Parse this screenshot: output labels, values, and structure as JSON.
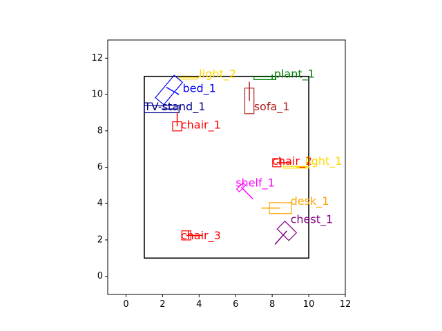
{
  "chart_data": {
    "type": "scatter",
    "xlim": [
      -1,
      12
    ],
    "ylim": [
      -1,
      13
    ],
    "x_ticks": [
      0,
      2,
      4,
      6,
      8,
      10,
      12
    ],
    "y_ticks": [
      0,
      2,
      4,
      6,
      8,
      10,
      12
    ],
    "grid": false,
    "room": {
      "x0": 1,
      "y0": 1,
      "x1": 10,
      "y1": 11,
      "color": "#000000"
    },
    "objects": [
      {
        "name": "light_2",
        "color": "#ffd700",
        "x": 3.4,
        "y": 10.9,
        "w": 1.0,
        "h": 0.1,
        "angle": 0,
        "label_x": 4.0,
        "label_y": 11.1
      },
      {
        "name": "plant_1",
        "color": "#008000",
        "x": 7.6,
        "y": 10.9,
        "w": 1.2,
        "h": 0.15,
        "angle": 0,
        "label_x": 8.1,
        "label_y": 11.1
      },
      {
        "name": "bed_1",
        "color": "#0000ff",
        "x": 2.35,
        "y": 10.25,
        "w": 1.6,
        "h": 0.6,
        "angle": -50,
        "label_x": 3.1,
        "label_y": 10.3
      },
      {
        "name": "TV-stand_1",
        "color": "#00008b",
        "x": 1.95,
        "y": 9.2,
        "w": 1.9,
        "h": 0.4,
        "angle": 0,
        "label_x": 1.0,
        "label_y": 9.3
      },
      {
        "name": "sofa_1",
        "color": "#b22222",
        "x": 6.75,
        "y": 9.65,
        "w": 0.5,
        "h": 1.4,
        "angle": 0,
        "label_x": 7.0,
        "label_y": 9.3
      },
      {
        "name": "chair_1",
        "color": "#ff0000",
        "x": 2.8,
        "y": 8.25,
        "w": 0.5,
        "h": 0.5,
        "angle": 0,
        "label_x": 3.0,
        "label_y": 8.3
      },
      {
        "name": "chair_2",
        "color": "#ff0000",
        "x": 8.25,
        "y": 6.25,
        "w": 0.45,
        "h": 0.45,
        "angle": 0,
        "label_x": 8.0,
        "label_y": 6.3
      },
      {
        "name": "light_1",
        "color": "#ffd700",
        "x": 9.3,
        "y": 6.0,
        "w": 1.4,
        "h": 0.1,
        "angle": 0,
        "label_x": 9.8,
        "label_y": 6.3
      },
      {
        "name": "shelf_1",
        "color": "#ff00ff",
        "x": 6.3,
        "y": 4.9,
        "w": 0.5,
        "h": 0.2,
        "angle": -45,
        "label_x": 6.0,
        "label_y": 5.1
      },
      {
        "name": "desk_1",
        "color": "#ffa500",
        "x": 8.45,
        "y": 3.75,
        "w": 1.2,
        "h": 0.6,
        "angle": 0,
        "label_x": 9.0,
        "label_y": 4.1
      },
      {
        "name": "chest_1",
        "color": "#800080",
        "x": 8.8,
        "y": 2.5,
        "w": 0.9,
        "h": 0.6,
        "angle": 45,
        "label_x": 9.0,
        "label_y": 3.1
      },
      {
        "name": "chair_3",
        "color": "#ff0000",
        "x": 3.3,
        "y": 2.25,
        "w": 0.5,
        "h": 0.5,
        "angle": 0,
        "label_x": 3.0,
        "label_y": 2.2
      }
    ],
    "orientation_lines": [
      {
        "color": "#ffd700",
        "x1": 3.9,
        "y1": 10.9,
        "x2": 4.1,
        "y2": 11.05
      },
      {
        "color": "#008000",
        "x1": 8.0,
        "y1": 10.85,
        "x2": 8.0,
        "y2": 11.1
      },
      {
        "color": "#0000ff",
        "x1": 2.2,
        "y1": 10.4,
        "x2": 2.9,
        "y2": 10.0
      },
      {
        "color": "#00008b",
        "x1": 1.95,
        "y1": 9.2,
        "x2": 2.8,
        "y2": 9.2
      },
      {
        "color": "#b22222",
        "x1": 6.75,
        "y1": 9.65,
        "x2": 6.75,
        "y2": 10.7
      },
      {
        "color": "#ff0000",
        "x1": 2.8,
        "y1": 8.25,
        "x2": 2.8,
        "y2": 9.0
      },
      {
        "color": "#ff0000",
        "x1": 8.25,
        "y1": 6.25,
        "x2": 9.0,
        "y2": 6.25
      },
      {
        "color": "#ffd700",
        "x1": 9.3,
        "y1": 6.0,
        "x2": 9.9,
        "y2": 6.0
      },
      {
        "color": "#ff00ff",
        "x1": 6.3,
        "y1": 4.9,
        "x2": 6.95,
        "y2": 4.25
      },
      {
        "color": "#ffa500",
        "x1": 8.45,
        "y1": 3.75,
        "x2": 7.4,
        "y2": 3.75
      },
      {
        "color": "#800080",
        "x1": 8.8,
        "y1": 2.5,
        "x2": 8.15,
        "y2": 1.75
      },
      {
        "color": "#ff0000",
        "x1": 3.3,
        "y1": 2.25,
        "x2": 4.2,
        "y2": 2.25
      }
    ]
  }
}
